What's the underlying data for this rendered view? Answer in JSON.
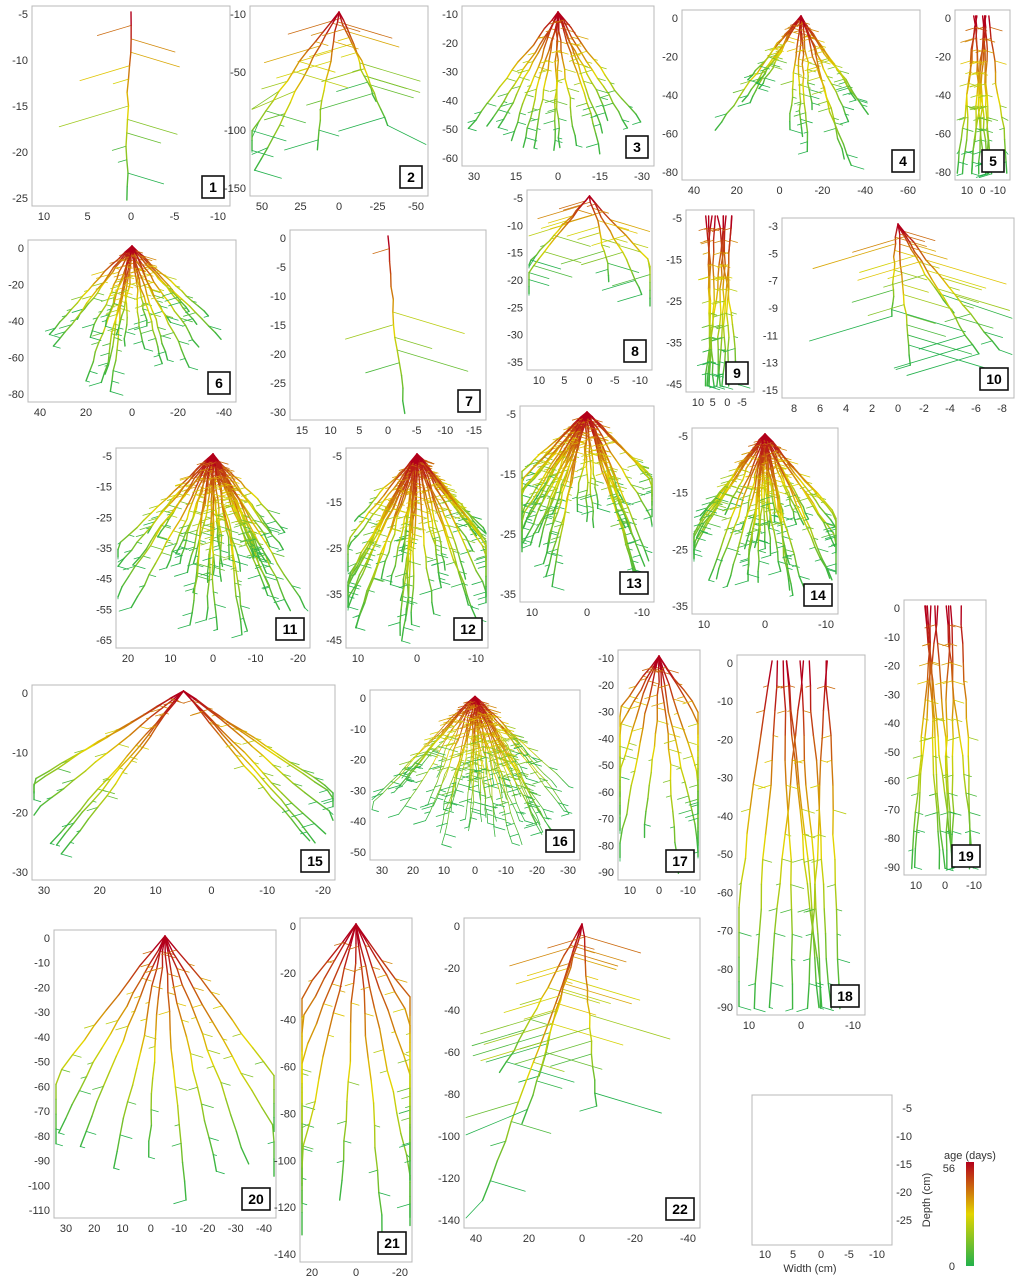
{
  "colors": {
    "young": "#22b14c",
    "mid": "#e3d400",
    "old": "#b3001b",
    "frame": "#b8b8b8"
  },
  "panels": [
    {
      "id": "1",
      "y_ticks": [
        "-5",
        "-10",
        "-15",
        "-20",
        "-25"
      ],
      "x_ticks": [
        "10",
        "5",
        "0",
        "-5",
        "-10"
      ],
      "shape": "taproot"
    },
    {
      "id": "2",
      "y_ticks": [
        "-10",
        "-50",
        "-100",
        "-150"
      ],
      "x_ticks": [
        "50",
        "25",
        "0",
        "-25",
        "-50"
      ],
      "shape": "sparse"
    },
    {
      "id": "3",
      "y_ticks": [
        "-10",
        "-20",
        "-30",
        "-40",
        "-50",
        "-60"
      ],
      "x_ticks": [
        "30",
        "15",
        "0",
        "-15",
        "-30"
      ],
      "shape": "dome"
    },
    {
      "id": "4",
      "y_ticks": [
        "0",
        "-20",
        "-40",
        "-60",
        "-80"
      ],
      "x_ticks": [
        "40",
        "20",
        "0",
        "-20",
        "-40",
        "-60"
      ],
      "shape": "bushy"
    },
    {
      "id": "5",
      "y_ticks": [
        "0",
        "-20",
        "-40",
        "-60",
        "-80"
      ],
      "x_ticks": [
        "10",
        "0",
        "-10"
      ],
      "shape": "column"
    },
    {
      "id": "6",
      "y_ticks": [
        "0",
        "-20",
        "-40",
        "-60",
        "-80"
      ],
      "x_ticks": [
        "40",
        "20",
        "0",
        "-20",
        "-40"
      ],
      "shape": "fan"
    },
    {
      "id": "7",
      "y_ticks": [
        "0",
        "-5",
        "-10",
        "-15",
        "-20",
        "-25",
        "-30"
      ],
      "x_ticks": [
        "15",
        "10",
        "5",
        "0",
        "-5",
        "-10",
        "-15"
      ],
      "shape": "taproot"
    },
    {
      "id": "8",
      "y_ticks": [
        "-5",
        "-10",
        "-15",
        "-20",
        "-25",
        "-30",
        "-35"
      ],
      "x_ticks": [
        "10",
        "5",
        "0",
        "-5",
        "-10"
      ],
      "shape": "sparse"
    },
    {
      "id": "9",
      "y_ticks": [
        "-5",
        "-15",
        "-25",
        "-35",
        "-45"
      ],
      "x_ticks": [
        "10",
        "5",
        "0",
        "-5"
      ],
      "shape": "column"
    },
    {
      "id": "10",
      "y_ticks": [
        "-3",
        "-5",
        "-7",
        "-9",
        "-11",
        "-13",
        "-15"
      ],
      "x_ticks": [
        "8",
        "6",
        "4",
        "2",
        "0",
        "-2",
        "-4",
        "-6",
        "-8"
      ],
      "shape": "sparse"
    },
    {
      "id": "11",
      "y_ticks": [
        "-5",
        "-15",
        "-25",
        "-35",
        "-45",
        "-55",
        "-65"
      ],
      "x_ticks": [
        "20",
        "10",
        "0",
        "-10",
        "-20"
      ],
      "shape": "dense"
    },
    {
      "id": "12",
      "y_ticks": [
        "-5",
        "-15",
        "-25",
        "-35",
        "-45"
      ],
      "x_ticks": [
        "10",
        "0",
        "-10"
      ],
      "shape": "dense"
    },
    {
      "id": "13",
      "y_ticks": [
        "-5",
        "-15",
        "-25",
        "-35"
      ],
      "x_ticks": [
        "10",
        "0",
        "-10"
      ],
      "shape": "dense"
    },
    {
      "id": "14",
      "y_ticks": [
        "-5",
        "-15",
        "-25",
        "-35"
      ],
      "x_ticks": [
        "10",
        "0",
        "-10"
      ],
      "shape": "dense"
    },
    {
      "id": "15",
      "y_ticks": [
        "0",
        "-10",
        "-20",
        "-30"
      ],
      "x_ticks": [
        "30",
        "20",
        "10",
        "0",
        "-10",
        "-20"
      ],
      "shape": "spread"
    },
    {
      "id": "16",
      "y_ticks": [
        "0",
        "-10",
        "-20",
        "-30",
        "-40",
        "-50"
      ],
      "x_ticks": [
        "30",
        "20",
        "10",
        "0",
        "-10",
        "-20",
        "-30"
      ],
      "shape": "blob"
    },
    {
      "id": "17",
      "y_ticks": [
        "-10",
        "-20",
        "-30",
        "-40",
        "-50",
        "-60",
        "-70",
        "-80",
        "-90"
      ],
      "x_ticks": [
        "10",
        "0",
        "-10"
      ],
      "shape": "curtain"
    },
    {
      "id": "18",
      "y_ticks": [
        "0",
        "-10",
        "-20",
        "-30",
        "-40",
        "-50",
        "-60",
        "-70",
        "-80",
        "-90"
      ],
      "x_ticks": [
        "10",
        "0",
        "-10"
      ],
      "shape": "column"
    },
    {
      "id": "19",
      "y_ticks": [
        "0",
        "-10",
        "-20",
        "-30",
        "-40",
        "-50",
        "-60",
        "-70",
        "-80",
        "-90"
      ],
      "x_ticks": [
        "10",
        "0",
        "-10"
      ],
      "shape": "column"
    },
    {
      "id": "20",
      "y_ticks": [
        "0",
        "-10",
        "-20",
        "-30",
        "-40",
        "-50",
        "-60",
        "-70",
        "-80",
        "-90",
        "-100",
        "-110"
      ],
      "x_ticks": [
        "30",
        "20",
        "10",
        "0",
        "-10",
        "-20",
        "-30",
        "-40"
      ],
      "shape": "curtain"
    },
    {
      "id": "21",
      "y_ticks": [
        "0",
        "-20",
        "-40",
        "-60",
        "-80",
        "-100",
        "-120",
        "-140"
      ],
      "x_ticks": [
        "20",
        "0",
        "-20"
      ],
      "shape": "curtain"
    },
    {
      "id": "22",
      "y_ticks": [
        "0",
        "-20",
        "-40",
        "-60",
        "-80",
        "-100",
        "-120",
        "-140"
      ],
      "x_ticks": [
        "40",
        "20",
        "0",
        "-20",
        "-40"
      ],
      "shape": "sparse"
    }
  ],
  "legend": {
    "x_ticks": [
      "10",
      "5",
      "0",
      "-5",
      "-10"
    ],
    "y_ticks": [
      "-5",
      "-10",
      "-15",
      "-20",
      "-25"
    ],
    "x_title": "Width (cm)",
    "y_title": "Depth (cm)",
    "colorbar_title": "age (days)",
    "colorbar_max": "56",
    "colorbar_min": "0"
  }
}
